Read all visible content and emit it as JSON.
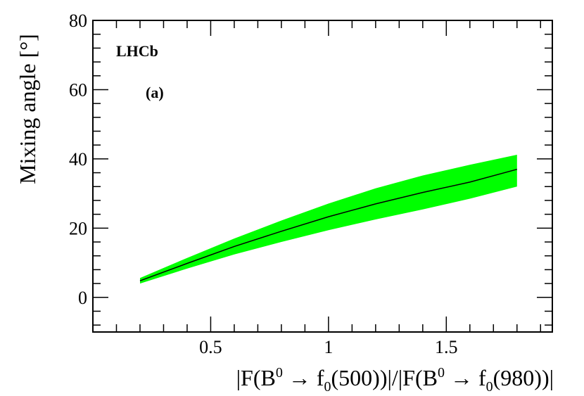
{
  "chart_data": {
    "type": "area",
    "title": "",
    "xlabel_parts": {
      "a": "|F(B",
      "sup1": "0",
      "b": " → f",
      "sub1": "0",
      "c": "(500))|/|F(B",
      "sup2": "0",
      "d": " → f",
      "sub2": "0",
      "e": "(980))|"
    },
    "ylabel": "Mixing angle [°]",
    "xlim": [
      0.0,
      1.95
    ],
    "ylim": [
      -10,
      80
    ],
    "xticks": [
      0.5,
      1,
      1.5
    ],
    "xtick_labels": [
      "0.5",
      "1",
      "1.5"
    ],
    "yticks": [
      0,
      20,
      40,
      60,
      80
    ],
    "ytick_labels": [
      "0",
      "20",
      "40",
      "60",
      "80"
    ],
    "annotations": [
      "LHCb",
      "(a)"
    ],
    "band_color": "#00ff00",
    "line_color": "#000000",
    "series": [
      {
        "x": [
          0.2,
          0.4,
          0.6,
          0.8,
          1.0,
          1.2,
          1.4,
          1.6,
          1.8
        ],
        "y": [
          4.8,
          9.8,
          14.7,
          19.1,
          23.3,
          27.0,
          30.3,
          33.3,
          37.0
        ],
        "y_low": [
          4.0,
          8.3,
          12.4,
          16.0,
          19.4,
          22.5,
          25.4,
          28.5,
          32.0
        ],
        "y_high": [
          5.6,
          11.4,
          17.0,
          22.2,
          27.1,
          31.5,
          35.2,
          38.3,
          41.2
        ]
      }
    ]
  }
}
